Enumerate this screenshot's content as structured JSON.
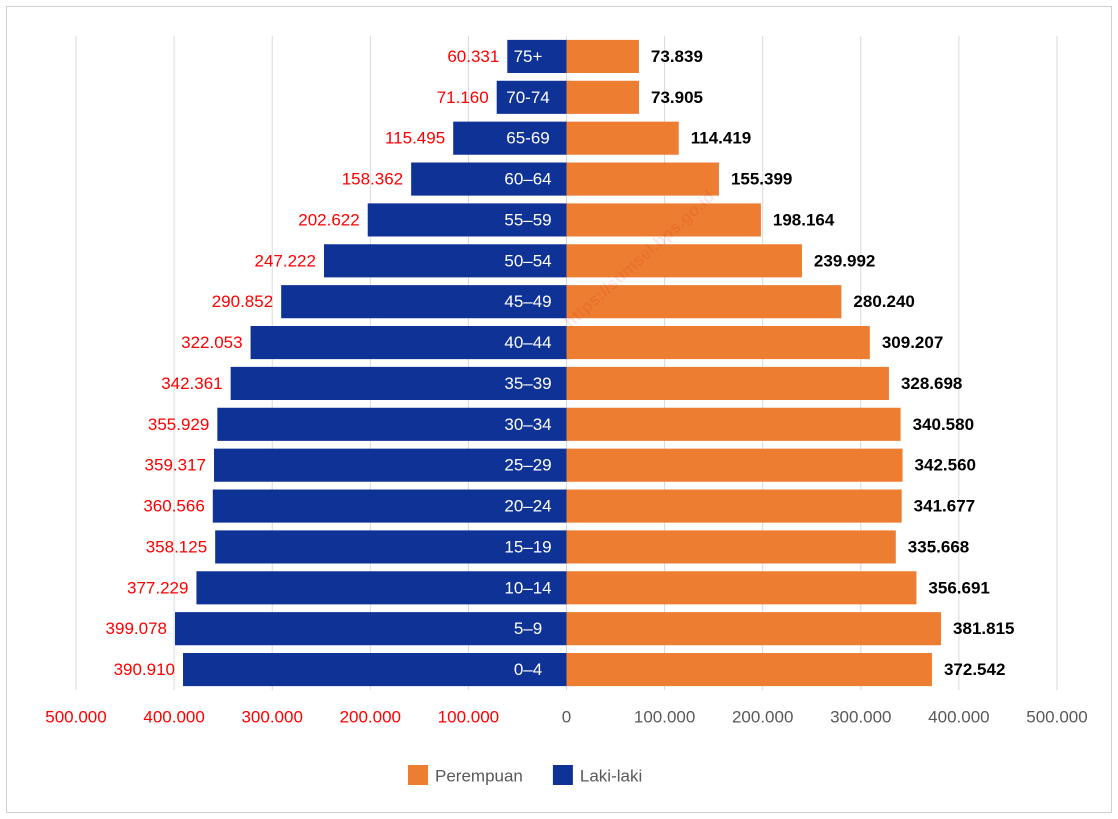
{
  "chart_data": {
    "type": "pyramid",
    "watermark": "https://sumsel.bps.go.id",
    "categories": [
      "0–4",
      "5–9",
      "10–14",
      "15–19",
      "20–24",
      "25–29",
      "30–34",
      "35–39",
      "40–44",
      "45–49",
      "50–54",
      "55–59",
      "60–64",
      "65-69",
      "70-74",
      "75+"
    ],
    "series": [
      {
        "name": "Perempuan",
        "color": "#ed7d31",
        "side": "right",
        "label_color": "#000000",
        "values": [
          372542,
          381815,
          356691,
          335668,
          341677,
          342560,
          340580,
          328698,
          309207,
          280240,
          239992,
          198164,
          155399,
          114419,
          73905,
          73839
        ],
        "value_labels": [
          "372.542",
          "381.815",
          "356.691",
          "335.668",
          "341.677",
          "342.560",
          "340.580",
          "328.698",
          "309.207",
          "280.240",
          "239.992",
          "198.164",
          "155.399",
          "114.419",
          "73.905",
          "73.839"
        ]
      },
      {
        "name": "Laki-laki",
        "color": "#0f3296",
        "side": "left",
        "label_color": "#ff0000",
        "values": [
          390910,
          399078,
          377229,
          358125,
          360566,
          359317,
          355929,
          342361,
          322053,
          290852,
          247222,
          202622,
          158362,
          115495,
          71160,
          60331
        ],
        "value_labels": [
          "390.910",
          "399.078",
          "377.229",
          "358.125",
          "360.566",
          "359.317",
          "355.929",
          "342.361",
          "322.053",
          "290.852",
          "247.222",
          "202.622",
          "158.362",
          "115.495",
          "71.160",
          "60.331"
        ]
      }
    ],
    "xlim": [
      -500000,
      500000
    ],
    "xticks": [
      {
        "value": -500000,
        "label": "500.000"
      },
      {
        "value": -400000,
        "label": "400.000"
      },
      {
        "value": -300000,
        "label": "300.000"
      },
      {
        "value": -200000,
        "label": "200.000"
      },
      {
        "value": -100000,
        "label": "100.000"
      },
      0,
      {
        "value": 100000,
        "label": "100.000"
      },
      {
        "value": 200000,
        "label": "200.000"
      },
      {
        "value": 300000,
        "label": "300.000"
      },
      {
        "value": 400000,
        "label": "400.000"
      },
      {
        "value": 500000,
        "label": "500.000"
      }
    ],
    "grid": true,
    "legend": "bottom"
  }
}
